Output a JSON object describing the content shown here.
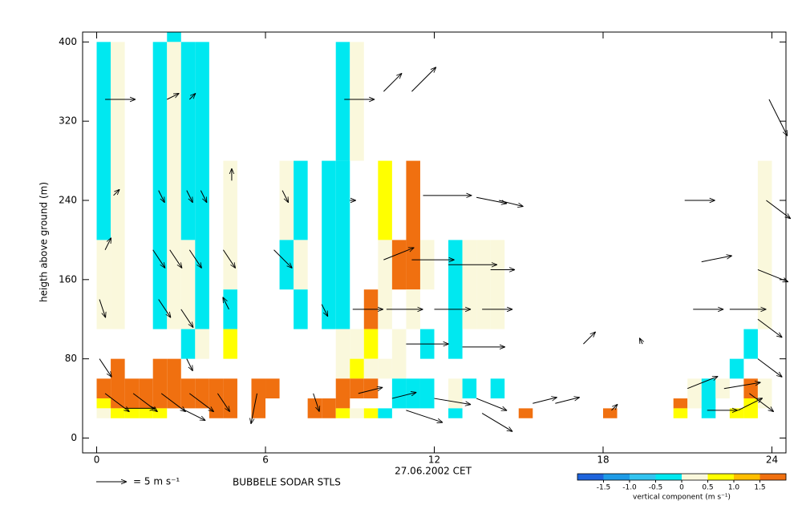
{
  "chart_data": {
    "type": "time-height",
    "xlabel": "27.06.2002 CET",
    "ylabel": "heigth above ground (m)",
    "station": "BUBBELE SODAR STLS",
    "xlim": [
      -0.5,
      24.5
    ],
    "ylim": [
      -15,
      410
    ],
    "xticks": [
      0,
      6,
      12,
      18,
      24
    ],
    "yticks": [
      0,
      80,
      160,
      240,
      320,
      400
    ],
    "arrow_ref": {
      "speed": 5,
      "label": "= 5 m s⁻¹"
    },
    "colorbar": {
      "label": "vertical component (m s⁻¹)",
      "clim": [
        -2,
        2
      ],
      "colors": [
        "#1e64dc",
        "#1e9be6",
        "#32c3f0",
        "#00e8f0",
        "#faf8dc",
        "#ffff00",
        "#ffbe00",
        "#f07010"
      ],
      "ticks": [
        -1.5,
        {
          "value": -1,
          "label": "-1.0"
        },
        -0.5,
        0,
        0.5,
        {
          "value": 1,
          "label": "1.0"
        },
        1.5
      ]
    },
    "cells": [
      [
        0,
        0.5,
        200,
        400,
        -0.25
      ],
      [
        0,
        0.5,
        110,
        200,
        0.25
      ],
      [
        0,
        0.5,
        40,
        60,
        1.75
      ],
      [
        0,
        0.5,
        30,
        40,
        0.75
      ],
      [
        0,
        0.5,
        20,
        30,
        0.25
      ],
      [
        0.5,
        1,
        110,
        400,
        0.25
      ],
      [
        0.5,
        1,
        30,
        80,
        1.75
      ],
      [
        0.5,
        1,
        20,
        30,
        0.75
      ],
      [
        1,
        1.5,
        30,
        60,
        1.75
      ],
      [
        1,
        1.5,
        20,
        30,
        0.75
      ],
      [
        1.5,
        2,
        30,
        60,
        1.75
      ],
      [
        1.5,
        2,
        20,
        30,
        0.75
      ],
      [
        2,
        2.5,
        110,
        400,
        -0.25
      ],
      [
        2,
        2.5,
        30,
        80,
        1.75
      ],
      [
        2,
        2.5,
        20,
        30,
        0.75
      ],
      [
        2.5,
        3,
        400,
        410,
        -0.25
      ],
      [
        2.5,
        3,
        110,
        400,
        0.25
      ],
      [
        2.5,
        3,
        30,
        80,
        1.75
      ],
      [
        3,
        3.5,
        200,
        400,
        -0.25
      ],
      [
        3,
        3.5,
        110,
        200,
        0.25
      ],
      [
        3,
        3.5,
        80,
        110,
        -0.25
      ],
      [
        3,
        3.5,
        30,
        60,
        1.75
      ],
      [
        3.5,
        4,
        110,
        400,
        -0.25
      ],
      [
        3.5,
        4,
        80,
        110,
        0.25
      ],
      [
        3.5,
        4,
        30,
        60,
        1.75
      ],
      [
        4,
        4.5,
        20,
        60,
        1.75
      ],
      [
        4.5,
        5,
        150,
        280,
        0.25
      ],
      [
        4.5,
        5,
        110,
        150,
        -0.25
      ],
      [
        4.5,
        5,
        80,
        110,
        0.75
      ],
      [
        4.5,
        5,
        20,
        60,
        1.75
      ],
      [
        5.5,
        6,
        20,
        60,
        1.75
      ],
      [
        6,
        6.5,
        40,
        60,
        1.75
      ],
      [
        6.5,
        7,
        200,
        280,
        0.25
      ],
      [
        6.5,
        7,
        150,
        200,
        -0.25
      ],
      [
        7,
        7.5,
        200,
        280,
        -0.25
      ],
      [
        7,
        7.5,
        150,
        200,
        0.25
      ],
      [
        7,
        7.5,
        110,
        150,
        -0.25
      ],
      [
        7.5,
        8,
        20,
        40,
        1.75
      ],
      [
        8,
        8.5,
        110,
        280,
        -0.25
      ],
      [
        8,
        8.5,
        20,
        40,
        1.75
      ],
      [
        8.5,
        9,
        280,
        400,
        -0.25
      ],
      [
        8.5,
        9,
        110,
        280,
        -0.25
      ],
      [
        8.5,
        9,
        60,
        110,
        0.25
      ],
      [
        8.5,
        9,
        30,
        60,
        1.75
      ],
      [
        8.5,
        9,
        20,
        30,
        0.75
      ],
      [
        9,
        9.5,
        280,
        400,
        0.25
      ],
      [
        9,
        9.5,
        80,
        110,
        0.25
      ],
      [
        9,
        9.5,
        60,
        80,
        0.75
      ],
      [
        9,
        9.5,
        40,
        60,
        1.75
      ],
      [
        9,
        9.5,
        20,
        30,
        0.25
      ],
      [
        9.5,
        10,
        110,
        150,
        1.75
      ],
      [
        9.5,
        10,
        80,
        110,
        0.75
      ],
      [
        9.5,
        10,
        60,
        80,
        0.25
      ],
      [
        9.5,
        10,
        40,
        60,
        1.75
      ],
      [
        9.5,
        10,
        20,
        30,
        0.75
      ],
      [
        10,
        10.5,
        200,
        280,
        0.75
      ],
      [
        10,
        10.5,
        110,
        200,
        0.25
      ],
      [
        10,
        10.5,
        60,
        80,
        0.25
      ],
      [
        10,
        10.5,
        20,
        30,
        -0.25
      ],
      [
        10.5,
        11,
        150,
        200,
        1.75
      ],
      [
        10.5,
        11,
        60,
        110,
        0.25
      ],
      [
        10.5,
        11,
        30,
        60,
        -0.25
      ],
      [
        11,
        11.5,
        150,
        280,
        1.75
      ],
      [
        11,
        11.5,
        110,
        150,
        0.25
      ],
      [
        11,
        11.5,
        30,
        60,
        -0.25
      ],
      [
        11.5,
        12,
        150,
        200,
        0.25
      ],
      [
        11.5,
        12,
        80,
        110,
        -0.25
      ],
      [
        11.5,
        12,
        30,
        60,
        -0.25
      ],
      [
        12.5,
        13,
        80,
        200,
        -0.25
      ],
      [
        12.5,
        13,
        30,
        60,
        0.25
      ],
      [
        12.5,
        13,
        20,
        30,
        -0.25
      ],
      [
        13,
        13.5,
        110,
        200,
        0.25
      ],
      [
        13,
        13.5,
        40,
        60,
        -0.25
      ],
      [
        13.5,
        14,
        110,
        200,
        0.25
      ],
      [
        14,
        14.5,
        110,
        200,
        0.25
      ],
      [
        14,
        14.5,
        40,
        60,
        -0.25
      ],
      [
        15,
        15.5,
        20,
        30,
        1.75
      ],
      [
        18,
        18.5,
        20,
        30,
        1.75
      ],
      [
        20.5,
        21,
        30,
        40,
        1.75
      ],
      [
        20.5,
        21,
        20,
        30,
        0.75
      ],
      [
        21,
        21.5,
        30,
        60,
        0.25
      ],
      [
        21.5,
        22,
        20,
        60,
        -0.25
      ],
      [
        22,
        22.5,
        40,
        60,
        0.25
      ],
      [
        22.5,
        23,
        60,
        80,
        -0.25
      ],
      [
        22.5,
        23,
        20,
        30,
        0.75
      ],
      [
        23,
        23.5,
        80,
        110,
        -0.25
      ],
      [
        23,
        23.5,
        40,
        60,
        1.75
      ],
      [
        23,
        23.5,
        20,
        40,
        0.75
      ],
      [
        23.5,
        24,
        110,
        280,
        0.25
      ],
      [
        23.5,
        24,
        30,
        60,
        0.25
      ]
    ],
    "arrows": [
      [
        0.3,
        342,
        5,
        0
      ],
      [
        2.5,
        342,
        2,
        1
      ],
      [
        3.3,
        342,
        1,
        1
      ],
      [
        8.8,
        342,
        5,
        0
      ],
      [
        10.2,
        350,
        3,
        3
      ],
      [
        11.2,
        350,
        4,
        4
      ],
      [
        0.6,
        245,
        1,
        1
      ],
      [
        2.2,
        250,
        1,
        -2
      ],
      [
        3.2,
        250,
        1,
        -2
      ],
      [
        3.7,
        250,
        1,
        -2
      ],
      [
        4.8,
        260,
        0,
        2
      ],
      [
        6.6,
        250,
        1,
        -2
      ],
      [
        9,
        240,
        1,
        0
      ],
      [
        11.6,
        245,
        8,
        0
      ],
      [
        13.5,
        243,
        5,
        -1
      ],
      [
        14.3,
        240,
        4,
        -1
      ],
      [
        20.9,
        240,
        5,
        0
      ],
      [
        23.9,
        342,
        3,
        -6
      ],
      [
        23.8,
        240,
        4,
        -3
      ],
      [
        0.3,
        190,
        1,
        2
      ],
      [
        2,
        190,
        2,
        -3
      ],
      [
        2.6,
        190,
        2,
        -3
      ],
      [
        3.3,
        190,
        2,
        -3
      ],
      [
        4.5,
        190,
        2,
        -3
      ],
      [
        6.3,
        190,
        3,
        -3
      ],
      [
        10.2,
        180,
        5,
        2
      ],
      [
        11.2,
        180,
        7,
        0
      ],
      [
        12.5,
        175,
        8,
        0
      ],
      [
        14,
        170,
        4,
        0
      ],
      [
        21.5,
        178,
        5,
        1
      ],
      [
        23.5,
        170,
        5,
        -2
      ],
      [
        0.1,
        140,
        1,
        -3
      ],
      [
        2.2,
        140,
        2,
        -3
      ],
      [
        3,
        130,
        2,
        -3
      ],
      [
        4.7,
        130,
        -1,
        2
      ],
      [
        8,
        135,
        1,
        -2
      ],
      [
        9.1,
        130,
        5,
        0
      ],
      [
        10.3,
        130,
        6,
        0
      ],
      [
        12,
        130,
        6,
        0
      ],
      [
        13.7,
        130,
        5,
        0
      ],
      [
        21.2,
        130,
        5,
        0
      ],
      [
        22.5,
        130,
        6,
        0
      ],
      [
        23.5,
        120,
        4,
        -3
      ],
      [
        0.1,
        80,
        2,
        -3
      ],
      [
        3.2,
        80,
        1,
        -2
      ],
      [
        11,
        95,
        7,
        0
      ],
      [
        13,
        92,
        7,
        0
      ],
      [
        17.3,
        95,
        2,
        2
      ],
      [
        19.4,
        95,
        -0.5,
        1
      ],
      [
        23.5,
        80,
        4,
        -3
      ],
      [
        0.3,
        45,
        4,
        -3
      ],
      [
        1.3,
        45,
        4,
        -3
      ],
      [
        2.3,
        45,
        4,
        -3
      ],
      [
        3.3,
        45,
        4,
        -3
      ],
      [
        4.3,
        45,
        2,
        -3
      ],
      [
        5.7,
        45,
        -1,
        -5
      ],
      [
        7.7,
        45,
        1,
        -3
      ],
      [
        9.3,
        45,
        4,
        1
      ],
      [
        10.5,
        40,
        4,
        1
      ],
      [
        12,
        40,
        6,
        -1
      ],
      [
        13.5,
        40,
        5,
        -2
      ],
      [
        15.5,
        35,
        4,
        1
      ],
      [
        16.3,
        35,
        4,
        1
      ],
      [
        21,
        50,
        5,
        2
      ],
      [
        22.3,
        50,
        6,
        1
      ],
      [
        23.2,
        45,
        4,
        -3
      ],
      [
        1,
        30,
        5,
        0
      ],
      [
        3,
        30,
        4,
        -2
      ],
      [
        11,
        28,
        6,
        -2
      ],
      [
        13.7,
        25,
        5,
        -3
      ],
      [
        18.3,
        28,
        1,
        1
      ],
      [
        21.7,
        28,
        5,
        0
      ],
      [
        22.8,
        28,
        4,
        2
      ]
    ]
  }
}
